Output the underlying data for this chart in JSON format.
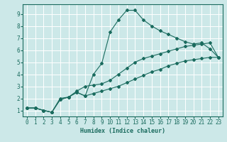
{
  "title": "",
  "xlabel": "Humidex (Indice chaleur)",
  "bg_color": "#cce8e8",
  "line_color": "#1a6b5e",
  "grid_color": "#ffffff",
  "xlim": [
    -0.5,
    23.5
  ],
  "ylim": [
    0.5,
    9.8
  ],
  "xticks": [
    0,
    1,
    2,
    3,
    4,
    5,
    6,
    7,
    8,
    9,
    10,
    11,
    12,
    13,
    14,
    15,
    16,
    17,
    18,
    19,
    20,
    21,
    22,
    23
  ],
  "yticks": [
    1,
    2,
    3,
    4,
    5,
    6,
    7,
    8,
    9
  ],
  "line1_x": [
    0,
    1,
    2,
    3,
    4,
    5,
    6,
    7,
    8,
    9,
    10,
    11,
    12,
    13,
    14,
    15,
    16,
    17,
    18,
    19,
    20,
    21,
    22,
    23
  ],
  "line1_y": [
    1.2,
    1.2,
    1.0,
    0.85,
    2.0,
    2.1,
    2.5,
    2.2,
    4.0,
    4.9,
    7.5,
    8.5,
    9.3,
    9.3,
    8.5,
    8.0,
    7.6,
    7.3,
    7.0,
    6.7,
    6.5,
    6.6,
    6.1,
    5.4
  ],
  "line2_x": [
    0,
    1,
    2,
    3,
    4,
    5,
    6,
    7,
    8,
    9,
    10,
    11,
    12,
    13,
    14,
    15,
    16,
    17,
    18,
    19,
    20,
    21,
    22,
    23
  ],
  "line2_y": [
    1.2,
    1.2,
    1.0,
    0.85,
    1.9,
    2.1,
    2.6,
    3.0,
    3.1,
    3.2,
    3.5,
    4.0,
    4.5,
    5.0,
    5.3,
    5.5,
    5.7,
    5.9,
    6.1,
    6.3,
    6.4,
    6.5,
    6.6,
    5.4
  ],
  "line3_x": [
    0,
    1,
    2,
    3,
    4,
    5,
    6,
    7,
    8,
    9,
    10,
    11,
    12,
    13,
    14,
    15,
    16,
    17,
    18,
    19,
    20,
    21,
    22,
    23
  ],
  "line3_y": [
    1.2,
    1.2,
    1.0,
    0.85,
    1.9,
    2.1,
    2.5,
    2.2,
    2.4,
    2.6,
    2.8,
    3.0,
    3.3,
    3.6,
    3.9,
    4.2,
    4.4,
    4.7,
    4.9,
    5.1,
    5.2,
    5.3,
    5.4,
    5.4
  ]
}
